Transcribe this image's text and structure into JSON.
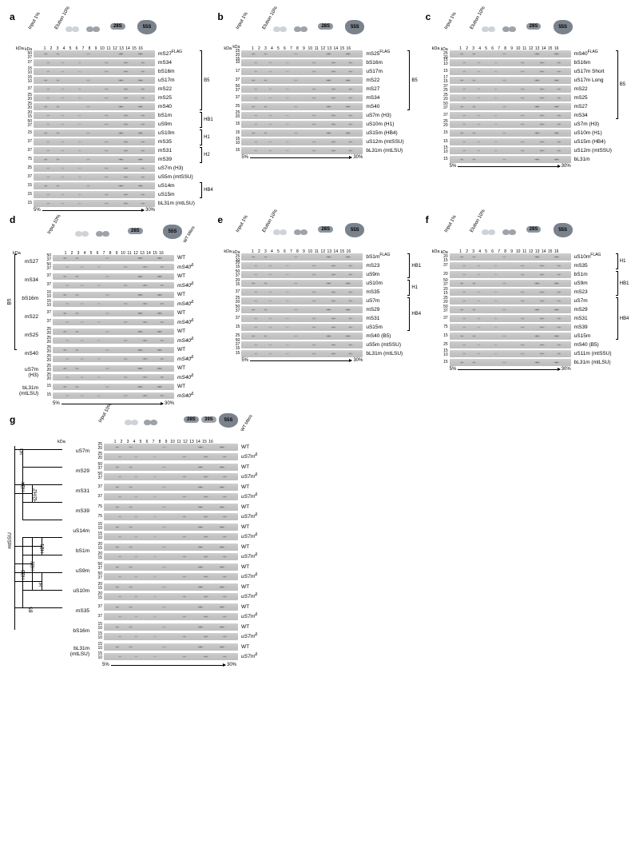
{
  "figure": {
    "letters": {
      "a": "a",
      "b": "b",
      "c": "c",
      "d": "d",
      "e": "e",
      "f": "f",
      "g": "g"
    },
    "global": {
      "kDa": "kDa",
      "lanes": [
        "1",
        "2",
        "3",
        "4",
        "5",
        "6",
        "7",
        "8",
        "9",
        "10",
        "11",
        "12",
        "13",
        "14",
        "15",
        "16"
      ],
      "input1": "Input 1%",
      "input10": "Input 10%",
      "elution10": "Elution 10%",
      "wt_mitos": "WT Mitos",
      "s28": "28S",
      "s39": "39S",
      "s55": "55S",
      "grad5": "5%",
      "grad30": "30%"
    },
    "a": {
      "strip_w": 152,
      "rows": [
        {
          "mw": [
            "kDa",
            "50",
            "37"
          ],
          "label": "mS27",
          "sup": "FLAG",
          "group": "B5"
        },
        {
          "mw": [
            "37"
          ],
          "label": "mS34",
          "group": "B5"
        },
        {
          "mw": [
            "15",
            "10"
          ],
          "label": "bS16m",
          "group": "B5"
        },
        {
          "mw": [
            "15",
            "10"
          ],
          "label": "uS17m",
          "group": "B5"
        },
        {
          "mw": [
            "37"
          ],
          "label": "mS22",
          "group": "B5"
        },
        {
          "mw": [
            "25",
            "20"
          ],
          "label": "mS25",
          "group": "B5"
        },
        {
          "mw": [
            "25",
            "20"
          ],
          "label": "mS40",
          "group": "B5"
        },
        {
          "mw": [
            "20",
            "15"
          ],
          "label": "bS1m",
          "group": "HB1"
        },
        {
          "mw": [
            "50",
            "37"
          ],
          "label": "uS9m",
          "group": "HB1"
        },
        {
          "mw": [
            "15"
          ],
          "label": "uS10m",
          "group": "H1"
        },
        {
          "mw": [
            "37"
          ],
          "label": "mS35",
          "group": "H1"
        },
        {
          "mw": [
            "37"
          ],
          "label": "mS31",
          "group": "H2"
        },
        {
          "mw": [
            "75"
          ],
          "label": "mS39",
          "group": "H2"
        },
        {
          "mw": [
            "25"
          ],
          "label": "uS7m (H3)",
          "group": ""
        },
        {
          "mw": [
            "37"
          ],
          "label": "uS5m (mtSSU)",
          "group": ""
        },
        {
          "mw": [
            "15"
          ],
          "label": "uS14m",
          "group": "HB4"
        },
        {
          "mw": [
            "15"
          ],
          "label": "uS15m",
          "group": "HB4"
        },
        {
          "mw": [
            "15"
          ],
          "label": "bL31m (mtLSU)",
          "group": ""
        }
      ],
      "brackets": [
        {
          "label": "B5",
          "from": 0,
          "to": 6
        },
        {
          "label": "HB1",
          "from": 7,
          "to": 8
        },
        {
          "label": "H1",
          "from": 9,
          "to": 10
        },
        {
          "label": "H2",
          "from": 11,
          "to": 12
        },
        {
          "label": "HB4",
          "from": 15,
          "to": 16
        }
      ]
    },
    "b": {
      "strip_w": 152,
      "rows": [
        {
          "mw": [
            "kDa",
            "25",
            "20",
            "15"
          ],
          "label": "mS25",
          "sup": "FLAG",
          "group": "B5"
        },
        {
          "mw": [
            "10"
          ],
          "label": "bS16m",
          "group": "B5"
        },
        {
          "mw": [
            "17"
          ],
          "label": "uS17m",
          "group": "B5"
        },
        {
          "mw": [
            "37"
          ],
          "label": "mS22",
          "group": "B5"
        },
        {
          "mw": [
            "50",
            "37"
          ],
          "label": "mS27",
          "group": "B5"
        },
        {
          "mw": [
            "37"
          ],
          "label": "mS34",
          "group": "B5"
        },
        {
          "mw": [
            "25"
          ],
          "label": "mS40",
          "group": "B5"
        },
        {
          "mw": [
            "25",
            "20"
          ],
          "label": "uS7m (H3)",
          "group": ""
        },
        {
          "mw": [
            "15"
          ],
          "label": "uS10m (H1)",
          "group": ""
        },
        {
          "mw": [
            "15"
          ],
          "label": "uS15m (HB4)",
          "group": ""
        },
        {
          "mw": [
            "15",
            "10"
          ],
          "label": "uS12m (mtSSU)",
          "group": ""
        },
        {
          "mw": [
            "15"
          ],
          "label": "bL31m (mtLSU)",
          "group": ""
        }
      ],
      "brackets": [
        {
          "label": "B5",
          "from": 0,
          "to": 6
        }
      ]
    },
    "c": {
      "strip_w": 152,
      "rows": [
        {
          "mw": [
            "kDa",
            "25",
            "20"
          ],
          "label": "mS40",
          "sup": "FLAG",
          "group": "B5"
        },
        {
          "mw": [
            "15",
            "10"
          ],
          "label": "bS16m",
          "group": "B5"
        },
        {
          "mw": [
            "15"
          ],
          "label": "uS17m Short",
          "group": "B5"
        },
        {
          "mw": [
            "17",
            "15"
          ],
          "label": "uS17m Long",
          "group": "B5"
        },
        {
          "mw": [
            "37",
            "25"
          ],
          "label": "mS22",
          "group": "B5"
        },
        {
          "mw": [
            "25",
            "20"
          ],
          "label": "mS25",
          "group": "B5"
        },
        {
          "mw": [
            "50",
            "37"
          ],
          "label": "mS27",
          "group": "B5"
        },
        {
          "mw": [
            "37"
          ],
          "label": "mS34",
          "group": "B5"
        },
        {
          "mw": [
            "25",
            "20"
          ],
          "label": "uS7m (H3)",
          "group": ""
        },
        {
          "mw": [
            "15"
          ],
          "label": "uS10m (H1)",
          "group": ""
        },
        {
          "mw": [
            "15"
          ],
          "label": "uS15m (HB4)",
          "group": ""
        },
        {
          "mw": [
            "15",
            "10"
          ],
          "label": "uS12m (mtSSU)",
          "group": ""
        },
        {
          "mw": [
            "15"
          ],
          "label": "bL31m",
          "group": ""
        }
      ],
      "brackets": [
        {
          "label": "B5",
          "from": 0,
          "to": 7
        }
      ]
    },
    "d": {
      "strip_w": 152,
      "left_bracket": "B5",
      "pairs": [
        {
          "name": "mS27",
          "mw": [
            "50",
            "37"
          ],
          "wt": "WT",
          "ko": "mS40Δ"
        },
        {
          "name": "mS34",
          "mw": [
            "37"
          ],
          "wt": "WT",
          "ko": "mS40Δ"
        },
        {
          "name": "bS16m",
          "mw": [
            "15",
            "10"
          ],
          "wt": "WT",
          "ko": "mS40Δ"
        },
        {
          "name": "mS22",
          "mw": [
            "37"
          ],
          "wt": "WT",
          "ko": "mS40Δ"
        },
        {
          "name": "mS25",
          "mw": [
            "25",
            "20"
          ],
          "wt": "WT",
          "ko": "mS40Δ"
        },
        {
          "name": "mS40",
          "mw": [
            "25",
            "20"
          ],
          "wt": "WT",
          "ko": "mS40Δ"
        },
        {
          "name": "uS7m (H3)",
          "mw": [
            "25",
            "20"
          ],
          "wt": "WT",
          "ko": "mS40Δ",
          "outside": true
        },
        {
          "name": "bL31m (mtLSU)",
          "mw": [
            "15"
          ],
          "wt": "WT",
          "ko": "mS40Δ",
          "outside": true
        }
      ]
    },
    "e": {
      "strip_w": 152,
      "rows": [
        {
          "mw": [
            "kDa",
            "25",
            "20"
          ],
          "label": "bS1m",
          "sup": "FLAG",
          "group": "HB1"
        },
        {
          "mw": [
            "20",
            "15"
          ],
          "label": "mS23",
          "group": "HB1"
        },
        {
          "mw": [
            "50",
            "37"
          ],
          "label": "uS9m",
          "group": "HB1"
        },
        {
          "mw": [
            "20",
            "15"
          ],
          "label": "uS10m",
          "group": "H1"
        },
        {
          "mw": [
            "37"
          ],
          "label": "mS35",
          "group": "H1"
        },
        {
          "mw": [
            "25",
            "20"
          ],
          "label": "uS7m",
          "group": "HB4"
        },
        {
          "mw": [
            "50",
            "37"
          ],
          "label": "mS29",
          "group": "HB4"
        },
        {
          "mw": [
            "37"
          ],
          "label": "mS31",
          "group": "HB4"
        },
        {
          "mw": [
            "15"
          ],
          "label": "uS15m",
          "group": "HB4"
        },
        {
          "mw": [
            "25"
          ],
          "label": "mS40 (B5)",
          "group": ""
        },
        {
          "mw": [
            "50",
            "37",
            "15"
          ],
          "label": "uS5m (mtSSU)",
          "group": ""
        },
        {
          "mw": [
            "15"
          ],
          "label": "bL31m (mtLSU)",
          "group": ""
        }
      ],
      "brackets": [
        {
          "label": "HB1",
          "from": 0,
          "to": 2
        },
        {
          "label": "H1",
          "from": 3,
          "to": 4
        },
        {
          "label": "HB4",
          "from": 5,
          "to": 8
        }
      ]
    },
    "f": {
      "strip_w": 152,
      "rows": [
        {
          "mw": [
            "kDa",
            "20",
            "15"
          ],
          "label": "uS10m",
          "sup": "FLAG",
          "group": "H1"
        },
        {
          "mw": [
            "37"
          ],
          "label": "mS35",
          "group": "H1"
        },
        {
          "mw": [
            "20"
          ],
          "label": "bS1m",
          "group": "HB1"
        },
        {
          "mw": [
            "50",
            "37"
          ],
          "label": "uS9m",
          "group": "HB1"
        },
        {
          "mw": [
            "20",
            "15"
          ],
          "label": "mS23",
          "group": "HB1"
        },
        {
          "mw": [
            "25",
            "20"
          ],
          "label": "uS7m",
          "group": "HB4"
        },
        {
          "mw": [
            "50",
            "37"
          ],
          "label": "mS29",
          "group": "HB4"
        },
        {
          "mw": [
            "37"
          ],
          "label": "mS31",
          "group": "HB4"
        },
        {
          "mw": [
            "75"
          ],
          "label": "mS39",
          "group": "HB4"
        },
        {
          "mw": [
            "15"
          ],
          "label": "uS15m",
          "group": "HB4"
        },
        {
          "mw": [
            "25"
          ],
          "label": "mS40 (B5)",
          "group": ""
        },
        {
          "mw": [
            "15",
            "10"
          ],
          "label": "uS11m (mtSSU)",
          "group": ""
        },
        {
          "mw": [
            "15"
          ],
          "label": "bL31m (mtLSU)",
          "group": ""
        }
      ],
      "brackets": [
        {
          "label": "H1",
          "from": 0,
          "to": 1
        },
        {
          "label": "HB1",
          "from": 2,
          "to": 4
        },
        {
          "label": "HB4",
          "from": 5,
          "to": 9
        }
      ]
    },
    "g": {
      "strip_w": 168,
      "tree": {
        "root_rot": "mtSSU",
        "nodes": [
          {
            "lbl": "H3",
            "rot": true
          },
          {
            "lbl": "HB4",
            "rot": true
          },
          {
            "lbl": "H2/H2'",
            "rot": true
          },
          {
            "lbl": "HB3",
            "rot": true
          },
          {
            "lbl": "HB2",
            "rot": true
          },
          {
            "lbl": "HB1",
            "rot": true
          },
          {
            "lbl": "H1",
            "rot": true
          },
          {
            "lbl": "B5",
            "rot": true
          }
        ]
      },
      "pairs": [
        {
          "name": "uS7m",
          "mw": [
            "25",
            "20"
          ],
          "wt": "WT",
          "ko": "uS7mΔ"
        },
        {
          "name": "mS29",
          "mw": [
            "50",
            "37"
          ],
          "wt": "WT",
          "ko": "uS7mΔ"
        },
        {
          "name": "mS31",
          "mw": [
            "37"
          ],
          "wt": "WT",
          "ko": "uS7mΔ"
        },
        {
          "name": "mS39",
          "mw": [
            "75"
          ],
          "wt": "WT",
          "ko": "uS7mΔ"
        },
        {
          "name": "uS14m",
          "mw": [
            "15",
            "10"
          ],
          "wt": "WT",
          "ko": "uS7mΔ"
        },
        {
          "name": "bS1m",
          "mw": [
            "20",
            "15"
          ],
          "wt": "WT",
          "ko": "uS7mΔ"
        },
        {
          "name": "uS9m",
          "mw": [
            "50",
            "37"
          ],
          "wt": "WT",
          "ko": "uS7mΔ"
        },
        {
          "name": "uS10m",
          "mw": [
            "20",
            "15"
          ],
          "wt": "WT",
          "ko": "uS7mΔ"
        },
        {
          "name": "mS35",
          "mw": [
            "37"
          ],
          "wt": "WT",
          "ko": "uS7mΔ"
        },
        {
          "name": "bS16m",
          "mw": [
            "15",
            "10"
          ],
          "wt": "WT",
          "ko": "uS7mΔ"
        },
        {
          "name": "bL31m (mtLSU)",
          "mw": [
            "15",
            "10"
          ],
          "wt": "WT",
          "ko": "uS7mΔ"
        }
      ]
    }
  },
  "style": {
    "bg": "#ffffff",
    "text": "#000000",
    "strip_bg": "#c6c6c6",
    "cloud_light": "#cfd3d8",
    "cloud_dark": "#9ea3a9",
    "badge": "#8d959e",
    "blob": "#7a838c",
    "blob_light": "#aab0b7",
    "font_main": 7,
    "font_label": 6.5,
    "font_tiny": 5
  }
}
